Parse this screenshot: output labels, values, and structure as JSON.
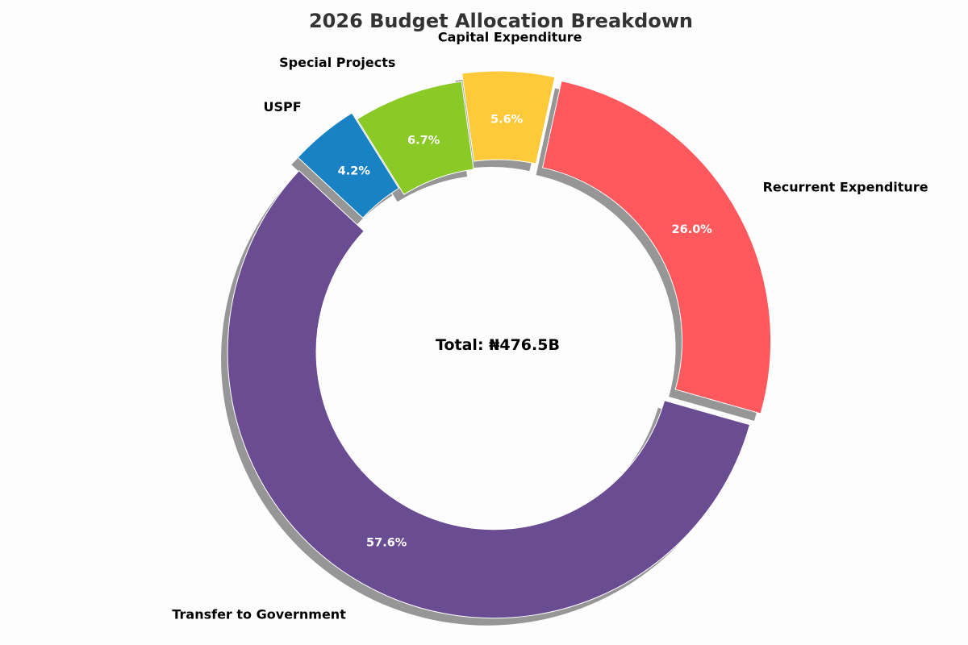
{
  "chart_data": {
    "type": "pie",
    "title": "2026 Budget Allocation Breakdown",
    "center_label": "Total: ₦476.5B",
    "donut": true,
    "shadow": true,
    "start": "Transfer to Government, counterclockwise from the upper left",
    "slices": [
      {
        "name": "Transfer to Government",
        "percent": 57.6,
        "pct_label": "57.6%",
        "color": "#6a4c93",
        "exploded": true
      },
      {
        "name": "Recurrent Expenditure",
        "percent": 26.0,
        "pct_label": "26.0%",
        "color": "#ff595e",
        "exploded": true
      },
      {
        "name": "Capital Expenditure",
        "percent": 5.6,
        "pct_label": "5.6%",
        "color": "#ffca3a",
        "exploded": true
      },
      {
        "name": "Special Projects",
        "percent": 6.7,
        "pct_label": "6.7%",
        "color": "#8ac926",
        "exploded": false
      },
      {
        "name": "USPF",
        "percent": 4.2,
        "pct_label": "4.2%",
        "color": "#1982c4",
        "exploded": true
      }
    ]
  }
}
